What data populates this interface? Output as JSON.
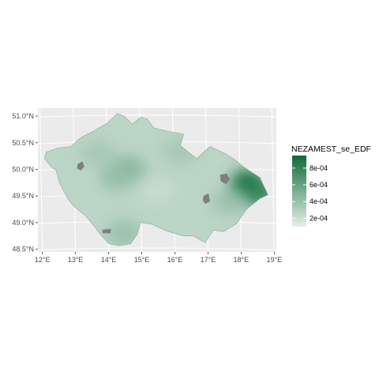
{
  "chart_data": {
    "type": "heatmap",
    "title": "",
    "xlabel": "",
    "ylabel": "",
    "x_ticks": [
      "12°E",
      "13°E",
      "14°E",
      "15°E",
      "16°E",
      "17°E",
      "18°E",
      "19°E"
    ],
    "y_ticks": [
      "51.0°N",
      "50.5°N",
      "50.0°N",
      "49.5°N",
      "49.0°N",
      "48.5°N"
    ],
    "x_range": [
      11.9,
      19.1
    ],
    "y_range": [
      48.45,
      51.15
    ],
    "grid": true,
    "legend": {
      "title": "NEZAMEST_se_EDF",
      "position": "right",
      "labels": [
        "8e-04",
        "6e-04",
        "4e-04",
        "2e-04"
      ],
      "values": [
        0.0008,
        0.0006,
        0.0004,
        0.0002
      ],
      "range": [
        0.0001,
        0.00095
      ],
      "color_low": "#e6efe9",
      "color_high": "#0e6b3a"
    },
    "missing_color": "#7f7f7f",
    "panel_background": "#ebebeb",
    "hotspots": [
      {
        "lon": 18.25,
        "lat": 49.75,
        "value": 0.00092
      },
      {
        "lon": 18.55,
        "lat": 49.55,
        "value": 0.0008
      },
      {
        "lon": 14.6,
        "lat": 50.0,
        "value": 0.00048
      },
      {
        "lon": 14.3,
        "lat": 49.85,
        "value": 0.00042
      },
      {
        "lon": 13.7,
        "lat": 50.3,
        "value": 0.00035
      },
      {
        "lon": 14.5,
        "lat": 48.8,
        "value": 0.0004
      },
      {
        "lon": 16.2,
        "lat": 50.35,
        "value": 0.00035
      },
      {
        "lon": 17.7,
        "lat": 49.4,
        "value": 0.0004
      },
      {
        "lon": 15.5,
        "lat": 49.6,
        "value": 0.00022
      }
    ]
  }
}
